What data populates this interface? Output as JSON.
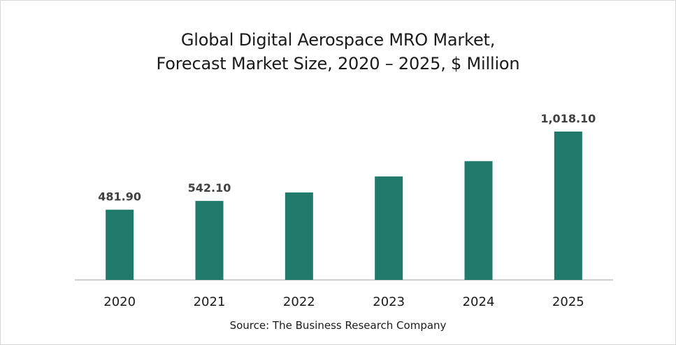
{
  "chart_data": {
    "type": "bar",
    "title_line1": "Global Digital Aerospace MRO Market,",
    "title_line2": "Forecast Market Size, 2020 – 2025, $ Million",
    "categories": [
      "2020",
      "2021",
      "2022",
      "2023",
      "2024",
      "2025"
    ],
    "values": [
      481.9,
      542.1,
      600,
      710,
      815,
      1018.1
    ],
    "data_labels": [
      "481.90",
      "542.10",
      "",
      "",
      "",
      "1,018.10"
    ],
    "xlabel": "",
    "ylabel": "",
    "ylim": [
      0,
      1100
    ],
    "grid": false,
    "legend": "none",
    "source": "Source: The Business Research Company"
  },
  "colors": {
    "bar": "#1f7a6b",
    "axis": "#bfbfbf",
    "text": "#1a1a1a",
    "label": "#404040"
  }
}
